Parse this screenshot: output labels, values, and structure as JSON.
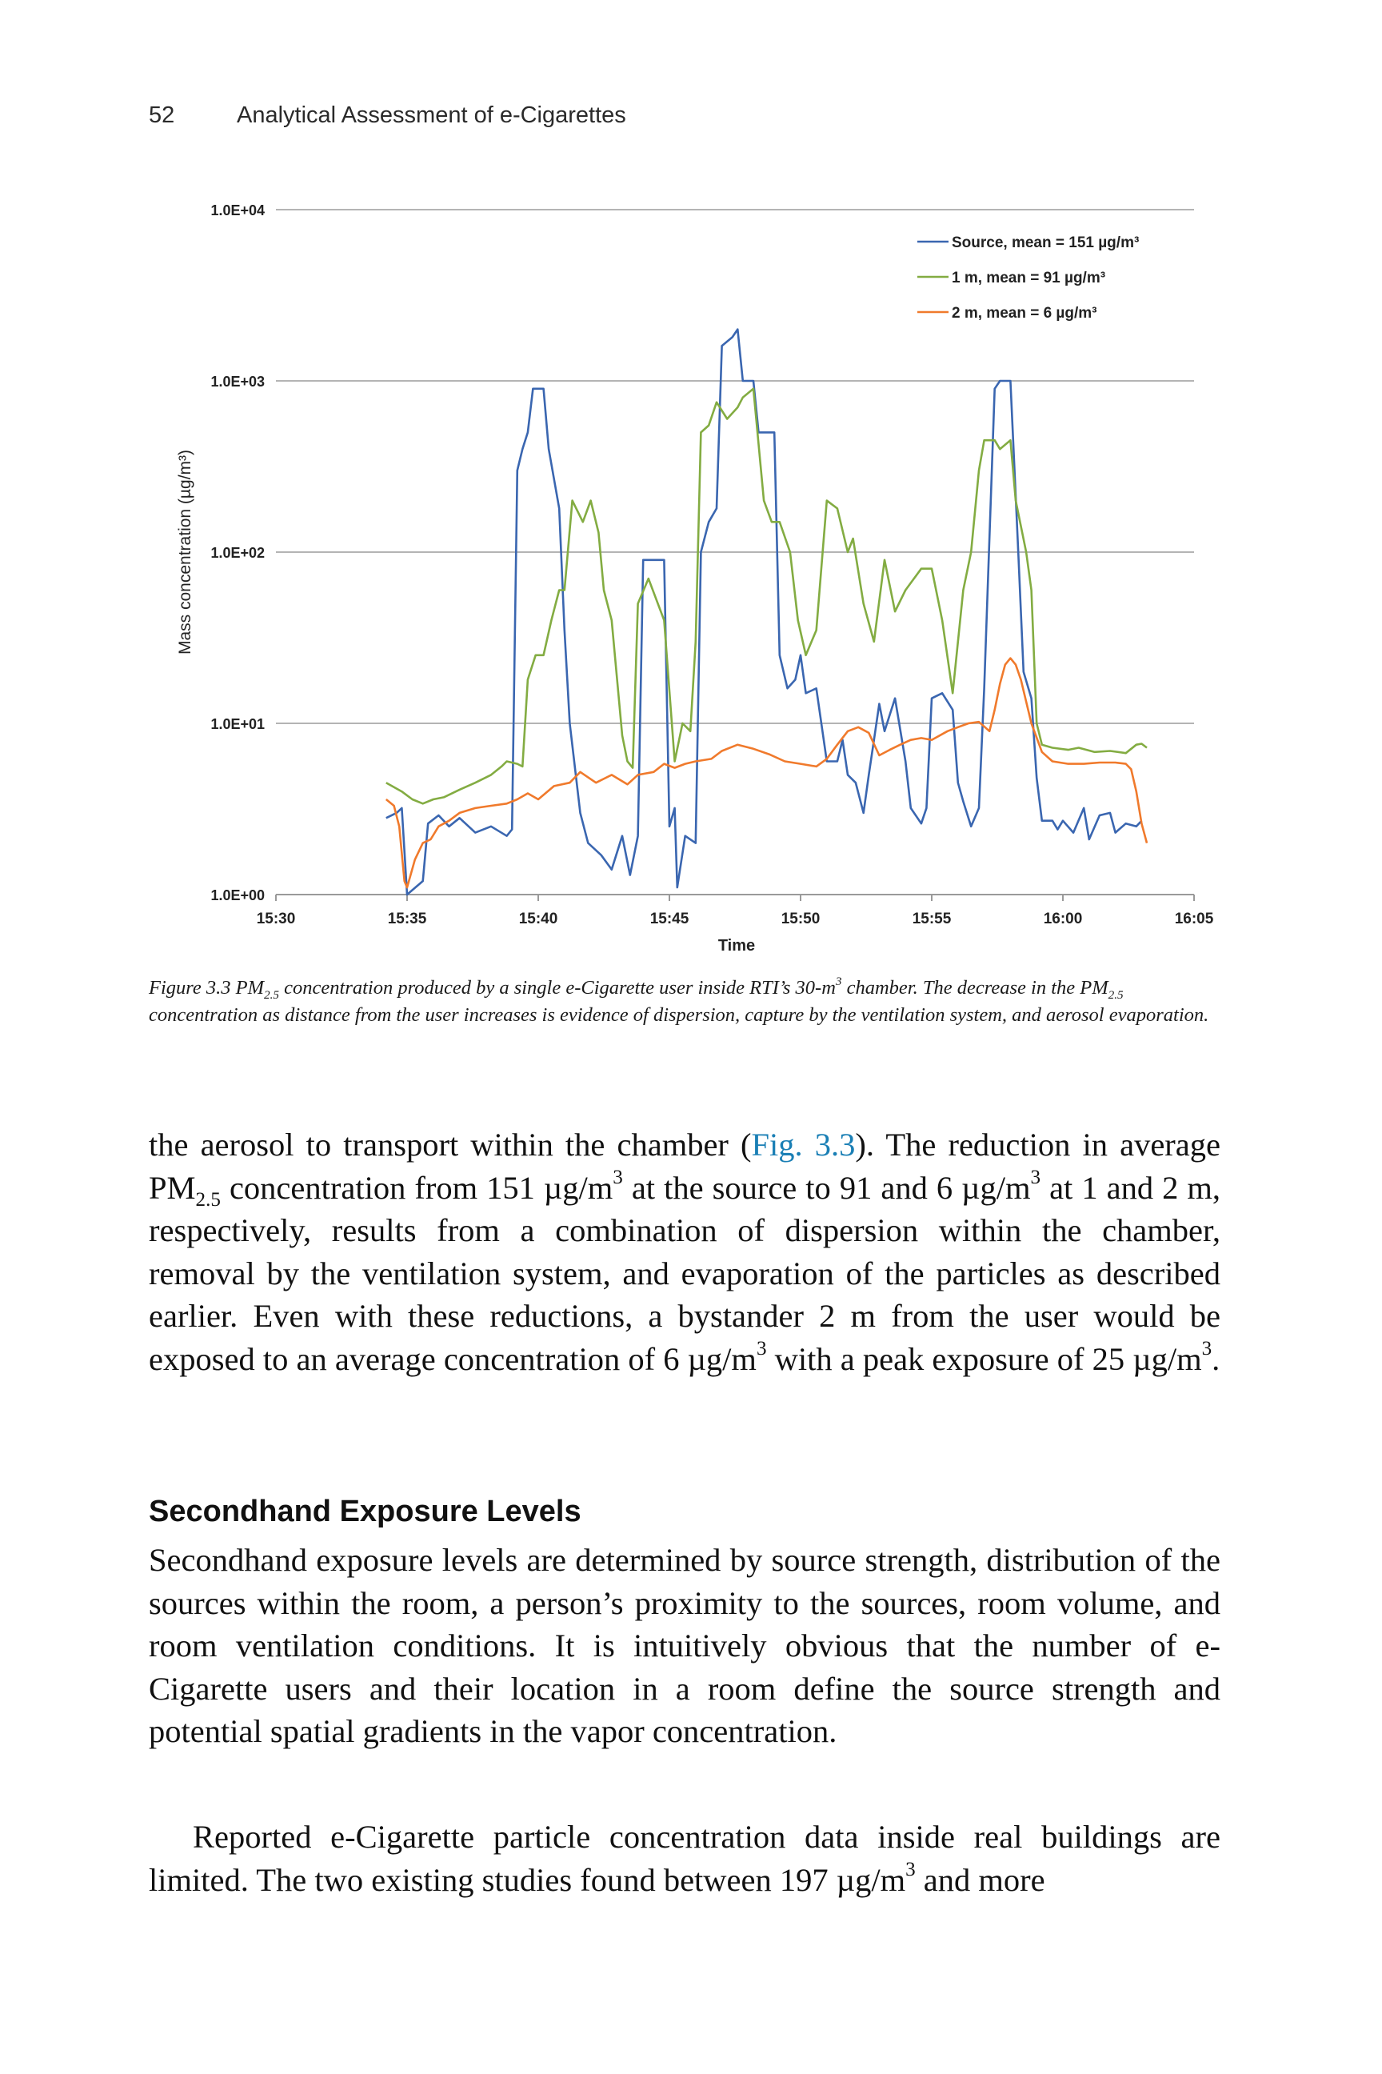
{
  "header": {
    "page_number": "52",
    "running_title": "Analytical Assessment of e-Cigarettes"
  },
  "chart_data": {
    "type": "line",
    "xlabel": "Time",
    "ylabel": "Mass concentration (µg/m³)",
    "yscale": "log",
    "ylim": [
      1,
      10000
    ],
    "y_ticks": [
      "1.0E+00",
      "1.0E+01",
      "1.0E+02",
      "1.0E+03",
      "1.0E+04"
    ],
    "x_ticks": [
      "15:30",
      "15:35",
      "15:40",
      "15:45",
      "15:50",
      "15:55",
      "16:00",
      "16:05"
    ],
    "xlim_minutes": [
      0,
      35
    ],
    "grid": "horizontal",
    "legend_position": "top-right",
    "series": [
      {
        "name": "Source, mean = 151 µg/m³",
        "color": "#3a66b0",
        "points": [
          [
            4.2,
            2.8
          ],
          [
            4.6,
            3.0
          ],
          [
            4.8,
            3.2
          ],
          [
            5.0,
            1.0
          ],
          [
            5.6,
            1.2
          ],
          [
            5.8,
            2.6
          ],
          [
            6.2,
            2.9
          ],
          [
            6.6,
            2.5
          ],
          [
            7.0,
            2.8
          ],
          [
            7.6,
            2.3
          ],
          [
            8.2,
            2.5
          ],
          [
            8.8,
            2.2
          ],
          [
            9.0,
            2.4
          ],
          [
            9.2,
            300
          ],
          [
            9.4,
            400
          ],
          [
            9.6,
            500
          ],
          [
            9.8,
            900
          ],
          [
            10.2,
            900
          ],
          [
            10.4,
            400
          ],
          [
            10.8,
            180
          ],
          [
            11.0,
            35
          ],
          [
            11.2,
            10
          ],
          [
            11.6,
            3.0
          ],
          [
            11.9,
            2.0
          ],
          [
            12.4,
            1.7
          ],
          [
            12.8,
            1.4
          ],
          [
            13.2,
            2.2
          ],
          [
            13.5,
            1.3
          ],
          [
            13.8,
            2.2
          ],
          [
            14.0,
            90
          ],
          [
            14.8,
            90
          ],
          [
            15.0,
            2.5
          ],
          [
            15.2,
            3.2
          ],
          [
            15.3,
            1.1
          ],
          [
            15.6,
            2.2
          ],
          [
            16.0,
            2.0
          ],
          [
            16.2,
            100
          ],
          [
            16.5,
            150
          ],
          [
            16.8,
            180
          ],
          [
            17.0,
            1600
          ],
          [
            17.4,
            1800
          ],
          [
            17.6,
            2000
          ],
          [
            17.8,
            1000
          ],
          [
            18.2,
            1000
          ],
          [
            18.4,
            500
          ],
          [
            19.0,
            500
          ],
          [
            19.2,
            25
          ],
          [
            19.5,
            16
          ],
          [
            19.8,
            18
          ],
          [
            20.0,
            25
          ],
          [
            20.2,
            15
          ],
          [
            20.6,
            16
          ],
          [
            21.0,
            6
          ],
          [
            21.4,
            6
          ],
          [
            21.6,
            8
          ],
          [
            21.8,
            5
          ],
          [
            22.1,
            4.5
          ],
          [
            22.4,
            3.0
          ],
          [
            22.6,
            5
          ],
          [
            22.8,
            8
          ],
          [
            23.0,
            13
          ],
          [
            23.2,
            9
          ],
          [
            23.6,
            14
          ],
          [
            24.0,
            6
          ],
          [
            24.2,
            3.2
          ],
          [
            24.6,
            2.6
          ],
          [
            24.8,
            3.2
          ],
          [
            25.0,
            14
          ],
          [
            25.4,
            15
          ],
          [
            25.8,
            12
          ],
          [
            26.0,
            4.5
          ],
          [
            26.2,
            3.5
          ],
          [
            26.5,
            2.5
          ],
          [
            26.8,
            3.2
          ],
          [
            27.0,
            16
          ],
          [
            27.4,
            900
          ],
          [
            27.6,
            1000
          ],
          [
            28.0,
            1000
          ],
          [
            28.3,
            100
          ],
          [
            28.5,
            20
          ],
          [
            28.8,
            14
          ],
          [
            29.0,
            4.8
          ],
          [
            29.2,
            2.7
          ],
          [
            29.6,
            2.7
          ],
          [
            29.8,
            2.4
          ],
          [
            30.0,
            2.7
          ],
          [
            30.4,
            2.3
          ],
          [
            30.8,
            3.2
          ],
          [
            31.0,
            2.1
          ],
          [
            31.4,
            2.9
          ],
          [
            31.8,
            3.0
          ],
          [
            32.0,
            2.3
          ],
          [
            32.4,
            2.6
          ],
          [
            32.8,
            2.5
          ],
          [
            33.0,
            2.7
          ]
        ]
      },
      {
        "name": "1 m, mean = 91 µg/m³",
        "color": "#83ac42",
        "points": [
          [
            4.2,
            4.5
          ],
          [
            4.8,
            4.0
          ],
          [
            5.2,
            3.6
          ],
          [
            5.6,
            3.4
          ],
          [
            6.0,
            3.6
          ],
          [
            6.4,
            3.7
          ],
          [
            7.0,
            4.1
          ],
          [
            7.6,
            4.5
          ],
          [
            8.2,
            5.0
          ],
          [
            8.6,
            5.6
          ],
          [
            8.8,
            6.0
          ],
          [
            9.2,
            5.8
          ],
          [
            9.4,
            5.6
          ],
          [
            9.6,
            18
          ],
          [
            9.9,
            25
          ],
          [
            10.2,
            25
          ],
          [
            10.5,
            40
          ],
          [
            10.8,
            60
          ],
          [
            11.0,
            60
          ],
          [
            11.3,
            200
          ],
          [
            11.7,
            150
          ],
          [
            12.0,
            200
          ],
          [
            12.3,
            130
          ],
          [
            12.5,
            60
          ],
          [
            12.8,
            40
          ],
          [
            13.2,
            8.5
          ],
          [
            13.4,
            6
          ],
          [
            13.6,
            5.5
          ],
          [
            13.8,
            50
          ],
          [
            14.2,
            70
          ],
          [
            14.8,
            40
          ],
          [
            15.2,
            6
          ],
          [
            15.5,
            10
          ],
          [
            15.8,
            9
          ],
          [
            16.0,
            30
          ],
          [
            16.2,
            500
          ],
          [
            16.5,
            550
          ],
          [
            16.8,
            750
          ],
          [
            17.2,
            600
          ],
          [
            17.6,
            700
          ],
          [
            17.8,
            800
          ],
          [
            18.2,
            900
          ],
          [
            18.6,
            200
          ],
          [
            18.9,
            150
          ],
          [
            19.2,
            150
          ],
          [
            19.6,
            100
          ],
          [
            19.9,
            40
          ],
          [
            20.2,
            25
          ],
          [
            20.6,
            35
          ],
          [
            21.0,
            200
          ],
          [
            21.4,
            180
          ],
          [
            21.8,
            100
          ],
          [
            22.0,
            120
          ],
          [
            22.4,
            50
          ],
          [
            22.8,
            30
          ],
          [
            23.2,
            90
          ],
          [
            23.6,
            45
          ],
          [
            24.0,
            60
          ],
          [
            24.6,
            80
          ],
          [
            25.0,
            80
          ],
          [
            25.4,
            40
          ],
          [
            25.8,
            15
          ],
          [
            26.2,
            60
          ],
          [
            26.5,
            100
          ],
          [
            26.8,
            300
          ],
          [
            27.0,
            450
          ],
          [
            27.4,
            450
          ],
          [
            27.6,
            400
          ],
          [
            28.0,
            450
          ],
          [
            28.2,
            200
          ],
          [
            28.6,
            100
          ],
          [
            28.8,
            60
          ],
          [
            29.0,
            10
          ],
          [
            29.2,
            7.5
          ],
          [
            29.6,
            7.2
          ],
          [
            30.2,
            7.0
          ],
          [
            30.6,
            7.2
          ],
          [
            31.2,
            6.8
          ],
          [
            31.8,
            6.9
          ],
          [
            32.4,
            6.7
          ],
          [
            32.8,
            7.5
          ],
          [
            33.0,
            7.6
          ],
          [
            33.2,
            7.2
          ]
        ]
      },
      {
        "name": "2 m, mean = 6 µg/m³",
        "color": "#f07a2c",
        "points": [
          [
            4.2,
            3.6
          ],
          [
            4.5,
            3.3
          ],
          [
            4.7,
            2.5
          ],
          [
            4.9,
            1.2
          ],
          [
            5.0,
            1.1
          ],
          [
            5.3,
            1.6
          ],
          [
            5.6,
            2.0
          ],
          [
            5.9,
            2.1
          ],
          [
            6.2,
            2.5
          ],
          [
            6.6,
            2.7
          ],
          [
            7.0,
            3.0
          ],
          [
            7.6,
            3.2
          ],
          [
            8.2,
            3.3
          ],
          [
            8.8,
            3.4
          ],
          [
            9.2,
            3.6
          ],
          [
            9.6,
            3.9
          ],
          [
            10.0,
            3.6
          ],
          [
            10.6,
            4.3
          ],
          [
            11.2,
            4.5
          ],
          [
            11.6,
            5.2
          ],
          [
            12.2,
            4.5
          ],
          [
            12.8,
            5.0
          ],
          [
            13.4,
            4.4
          ],
          [
            13.8,
            5.0
          ],
          [
            14.4,
            5.2
          ],
          [
            14.8,
            5.8
          ],
          [
            15.2,
            5.5
          ],
          [
            15.6,
            5.8
          ],
          [
            16.0,
            6.0
          ],
          [
            16.6,
            6.2
          ],
          [
            17.0,
            6.9
          ],
          [
            17.6,
            7.5
          ],
          [
            18.2,
            7.1
          ],
          [
            18.8,
            6.6
          ],
          [
            19.4,
            6.0
          ],
          [
            20.0,
            5.8
          ],
          [
            20.6,
            5.6
          ],
          [
            21.0,
            6.2
          ],
          [
            21.4,
            7.5
          ],
          [
            21.8,
            9.0
          ],
          [
            22.2,
            9.5
          ],
          [
            22.6,
            8.8
          ],
          [
            23.0,
            6.5
          ],
          [
            23.4,
            7.0
          ],
          [
            23.8,
            7.5
          ],
          [
            24.2,
            8.0
          ],
          [
            24.6,
            8.2
          ],
          [
            25.0,
            8.0
          ],
          [
            25.6,
            9.0
          ],
          [
            26.0,
            9.5
          ],
          [
            26.4,
            10.0
          ],
          [
            26.8,
            10.2
          ],
          [
            27.2,
            9.0
          ],
          [
            27.4,
            12.0
          ],
          [
            27.6,
            17
          ],
          [
            27.8,
            22
          ],
          [
            28.0,
            24
          ],
          [
            28.2,
            22
          ],
          [
            28.4,
            18
          ],
          [
            28.8,
            10
          ],
          [
            29.2,
            6.8
          ],
          [
            29.6,
            6.0
          ],
          [
            30.2,
            5.8
          ],
          [
            30.8,
            5.8
          ],
          [
            31.4,
            5.9
          ],
          [
            32.0,
            5.9
          ],
          [
            32.4,
            5.8
          ],
          [
            32.6,
            5.4
          ],
          [
            32.8,
            4.0
          ],
          [
            33.0,
            2.6
          ],
          [
            33.2,
            2.0
          ]
        ]
      }
    ]
  },
  "caption": {
    "label": "Figure 3.3",
    "pm_a": "PM",
    "pm_sub": "2.5",
    "text_1": " concentration produced by a single e-Cigarette user inside RTI’s 30-m",
    "sup_3": "3",
    "text_2": " chamber. The decrease in the ",
    "text_3": " concentration as distance from the user increases is evidence of dispersion, capture by the ventilation system, and aerosol evaporation."
  },
  "paragraph1": {
    "a": "the aerosol to transport within the chamber (",
    "link": "Fig. 3.3",
    "b": "). The reduction in average PM",
    "sub": "2.5",
    "c": " concentration from 151 µg/m",
    "sup": "3",
    "d": " at the source to 91 and 6 µg/m",
    "e": " at 1 and 2 m, respectively, results from a combination of dispersion within the chamber, removal by the ventilation system, and evaporation of the particles as described earlier. Even with these reductions, a bystander 2 m from the user would be exposed to an average concentration of 6 µg/m",
    "f": " with a peak exposure of 25 µg/m",
    "g": "."
  },
  "section_heading": "Secondhand Exposure Levels",
  "paragraph2": "Secondhand exposure levels are determined by source strength, distribution of the sources within the room, a person’s proximity to the sources, room volume, and room ventilation conditions. It is intuitively obvious that the number of e-Cigarette users and their location in a room define the source strength and potential spatial gradients in the vapor concentration.",
  "paragraph3": {
    "a": "Reported e-Cigarette particle concentration data inside real buildings are limited. The two existing studies found between 197 µg/m",
    "sup": "3",
    "b": " and more"
  }
}
